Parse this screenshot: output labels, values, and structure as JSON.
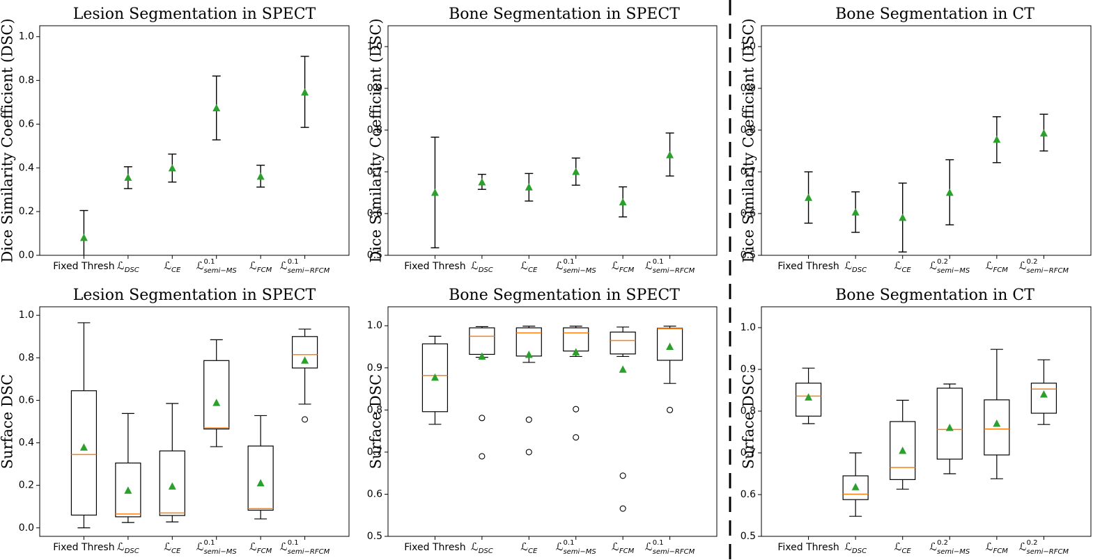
{
  "chart_data": [
    {
      "panel": "top-left",
      "type": "errorbar",
      "title": "Lesion Segmentation in SPECT",
      "ylabel": "Dice Similarity Coefficient (DSC)",
      "ylim": [
        0.0,
        1.05
      ],
      "yticks": [
        "0.0",
        "0.2",
        "0.4",
        "0.6",
        "0.8",
        "1.0"
      ],
      "categories": [
        {
          "main": "Fixed Thresh"
        },
        {
          "main": "ℒ",
          "sub": "DSC"
        },
        {
          "main": "ℒ",
          "sub": "CE"
        },
        {
          "main": "ℒ",
          "sub": "semi−MS",
          "sup": "0.1"
        },
        {
          "main": "ℒ",
          "sub": "FCM"
        },
        {
          "main": "ℒ",
          "sub": "semi−RFCM",
          "sup": "0.1"
        }
      ],
      "mean": [
        0.08,
        0.355,
        0.398,
        0.673,
        0.36,
        0.745
      ],
      "lower": [
        -0.04,
        0.305,
        0.335,
        0.528,
        0.312,
        0.585
      ],
      "upper": [
        0.205,
        0.405,
        0.463,
        0.82,
        0.412,
        0.91
      ]
    },
    {
      "panel": "top-middle",
      "type": "errorbar",
      "title": "Bone Segmentation in SPECT",
      "ylabel": "Dice Similarity Coefficient (DSC)",
      "ylim": [
        0.5,
        1.05
      ],
      "yticks": [
        "0.5",
        "0.6",
        "0.7",
        "0.8",
        "0.9",
        "1.0"
      ],
      "categories": [
        {
          "main": "Fixed Thresh"
        },
        {
          "main": "ℒ",
          "sub": "DSC"
        },
        {
          "main": "ℒ",
          "sub": "CE"
        },
        {
          "main": "ℒ",
          "sub": "semi−MS",
          "sup": "0.1"
        },
        {
          "main": "ℒ",
          "sub": "FCM"
        },
        {
          "main": "ℒ",
          "sub": "semi−RFCM",
          "sup": "0.1"
        }
      ],
      "mean": [
        0.65,
        0.675,
        0.663,
        0.7,
        0.627,
        0.74
      ],
      "lower": [
        0.518,
        0.658,
        0.63,
        0.668,
        0.592,
        0.69
      ],
      "upper": [
        0.783,
        0.694,
        0.696,
        0.733,
        0.664,
        0.793
      ]
    },
    {
      "panel": "top-right",
      "type": "errorbar",
      "title": "Bone Segmentation in CT",
      "ylabel": "Dice Similarity Coefficient (DSC)",
      "ylim": [
        0.5,
        1.05
      ],
      "yticks": [
        "0.5",
        "0.6",
        "0.7",
        "0.8",
        "0.9",
        "1.0"
      ],
      "categories": [
        {
          "main": "Fixed Thresh"
        },
        {
          "main": "ℒ",
          "sub": "DSC"
        },
        {
          "main": "ℒ",
          "sub": "CE"
        },
        {
          "main": "ℒ",
          "sub": "semi−MS",
          "sup": "0.2"
        },
        {
          "main": "ℒ",
          "sub": "FCM"
        },
        {
          "main": "ℒ",
          "sub": "semi−RFCM",
          "sup": "0.2"
        }
      ],
      "mean": [
        0.638,
        0.603,
        0.59,
        0.65,
        0.777,
        0.792
      ],
      "lower": [
        0.577,
        0.555,
        0.508,
        0.573,
        0.722,
        0.75
      ],
      "upper": [
        0.7,
        0.652,
        0.673,
        0.729,
        0.832,
        0.838
      ]
    },
    {
      "panel": "bottom-left",
      "type": "boxplot",
      "title": "Lesion Segmentation in SPECT",
      "ylabel": "Surface DSC",
      "ylim": [
        -0.04,
        1.04
      ],
      "yticks": [
        "0.0",
        "0.2",
        "0.4",
        "0.6",
        "0.8",
        "1.0"
      ],
      "categories": [
        {
          "main": "Fixed Thresh"
        },
        {
          "main": "ℒ",
          "sub": "DSC"
        },
        {
          "main": "ℒ",
          "sub": "CE"
        },
        {
          "main": "ℒ",
          "sub": "semi−MS",
          "sup": "0.1"
        },
        {
          "main": "ℒ",
          "sub": "FCM"
        },
        {
          "main": "ℒ",
          "sub": "semi−RFCM",
          "sup": "0.1"
        }
      ],
      "boxes": [
        {
          "whislo": 0.0,
          "q1": 0.06,
          "med": 0.345,
          "q3": 0.645,
          "whishi": 0.965,
          "mean": 0.378,
          "fliers": []
        },
        {
          "whislo": 0.025,
          "q1": 0.052,
          "med": 0.065,
          "q3": 0.305,
          "whishi": 0.538,
          "mean": 0.175,
          "fliers": []
        },
        {
          "whislo": 0.028,
          "q1": 0.058,
          "med": 0.07,
          "q3": 0.362,
          "whishi": 0.585,
          "mean": 0.195,
          "fliers": []
        },
        {
          "whislo": 0.382,
          "q1": 0.465,
          "med": 0.47,
          "q3": 0.787,
          "whishi": 0.885,
          "mean": 0.588,
          "fliers": []
        },
        {
          "whislo": 0.042,
          "q1": 0.083,
          "med": 0.09,
          "q3": 0.385,
          "whishi": 0.528,
          "mean": 0.21,
          "fliers": []
        },
        {
          "whislo": 0.582,
          "q1": 0.752,
          "med": 0.815,
          "q3": 0.9,
          "whishi": 0.935,
          "mean": 0.787,
          "fliers": [
            0.51
          ]
        }
      ]
    },
    {
      "panel": "bottom-middle",
      "type": "boxplot",
      "title": "Bone Segmentation in SPECT",
      "ylabel": "Surface DSC",
      "ylim": [
        0.5,
        1.045
      ],
      "yticks": [
        "0.5",
        "0.6",
        "0.7",
        "0.8",
        "0.9",
        "1.0"
      ],
      "categories": [
        {
          "main": "Fixed Thresh"
        },
        {
          "main": "ℒ",
          "sub": "DSC"
        },
        {
          "main": "ℒ",
          "sub": "CE"
        },
        {
          "main": "ℒ",
          "sub": "semi−MS",
          "sup": "0.1"
        },
        {
          "main": "ℒ",
          "sub": "FCM"
        },
        {
          "main": "ℒ",
          "sub": "semi−RFCM",
          "sup": "0.1"
        }
      ],
      "boxes": [
        {
          "whislo": 0.766,
          "q1": 0.796,
          "med": 0.882,
          "q3": 0.957,
          "whishi": 0.975,
          "mean": 0.877,
          "fliers": []
        },
        {
          "whislo": 0.925,
          "q1": 0.932,
          "med": 0.975,
          "q3": 0.995,
          "whishi": 0.998,
          "mean": 0.927,
          "fliers": [
            0.781,
            0.69
          ]
        },
        {
          "whislo": 0.913,
          "q1": 0.928,
          "med": 0.983,
          "q3": 0.995,
          "whishi": 0.999,
          "mean": 0.931,
          "fliers": [
            0.777,
            0.7
          ]
        },
        {
          "whislo": 0.927,
          "q1": 0.94,
          "med": 0.983,
          "q3": 0.995,
          "whishi": 0.999,
          "mean": 0.937,
          "fliers": [
            0.802,
            0.735
          ]
        },
        {
          "whislo": 0.927,
          "q1": 0.933,
          "med": 0.965,
          "q3": 0.985,
          "whishi": 0.997,
          "mean": 0.896,
          "fliers": [
            0.644,
            0.566
          ]
        },
        {
          "whislo": 0.863,
          "q1": 0.918,
          "med": 0.993,
          "q3": 0.994,
          "whishi": 0.999,
          "mean": 0.95,
          "fliers": [
            0.8
          ]
        }
      ]
    },
    {
      "panel": "bottom-right",
      "type": "boxplot",
      "title": "Bone Segmentation in CT",
      "ylabel": "Surface DSC",
      "ylim": [
        0.5,
        1.05
      ],
      "yticks": [
        "0.5",
        "0.6",
        "0.7",
        "0.8",
        "0.9",
        "1.0"
      ],
      "categories": [
        {
          "main": "Fixed Thresh"
        },
        {
          "main": "ℒ",
          "sub": "DSC"
        },
        {
          "main": "ℒ",
          "sub": "CE"
        },
        {
          "main": "ℒ",
          "sub": "semi−MS",
          "sup": "0.2"
        },
        {
          "main": "ℒ",
          "sub": "FCM"
        },
        {
          "main": "ℒ",
          "sub": "semi−RFCM",
          "sup": "0.2"
        }
      ],
      "boxes": [
        {
          "whislo": 0.77,
          "q1": 0.788,
          "med": 0.836,
          "q3": 0.867,
          "whishi": 0.903,
          "mean": 0.833,
          "fliers": []
        },
        {
          "whislo": 0.548,
          "q1": 0.588,
          "med": 0.601,
          "q3": 0.645,
          "whishi": 0.7,
          "mean": 0.618,
          "fliers": []
        },
        {
          "whislo": 0.613,
          "q1": 0.636,
          "med": 0.665,
          "q3": 0.775,
          "whishi": 0.826,
          "mean": 0.705,
          "fliers": []
        },
        {
          "whislo": 0.65,
          "q1": 0.685,
          "med": 0.756,
          "q3": 0.855,
          "whishi": 0.865,
          "mean": 0.76,
          "fliers": []
        },
        {
          "whislo": 0.638,
          "q1": 0.695,
          "med": 0.757,
          "q3": 0.827,
          "whishi": 0.948,
          "mean": 0.77,
          "fliers": []
        },
        {
          "whislo": 0.768,
          "q1": 0.795,
          "med": 0.853,
          "q3": 0.867,
          "whishi": 0.923,
          "mean": 0.84,
          "fliers": []
        }
      ]
    }
  ],
  "colors": {
    "mean_marker": "#2ca02c",
    "median_line": "#ff7f0e",
    "box_stroke": "#000000",
    "divider": "#000000"
  }
}
